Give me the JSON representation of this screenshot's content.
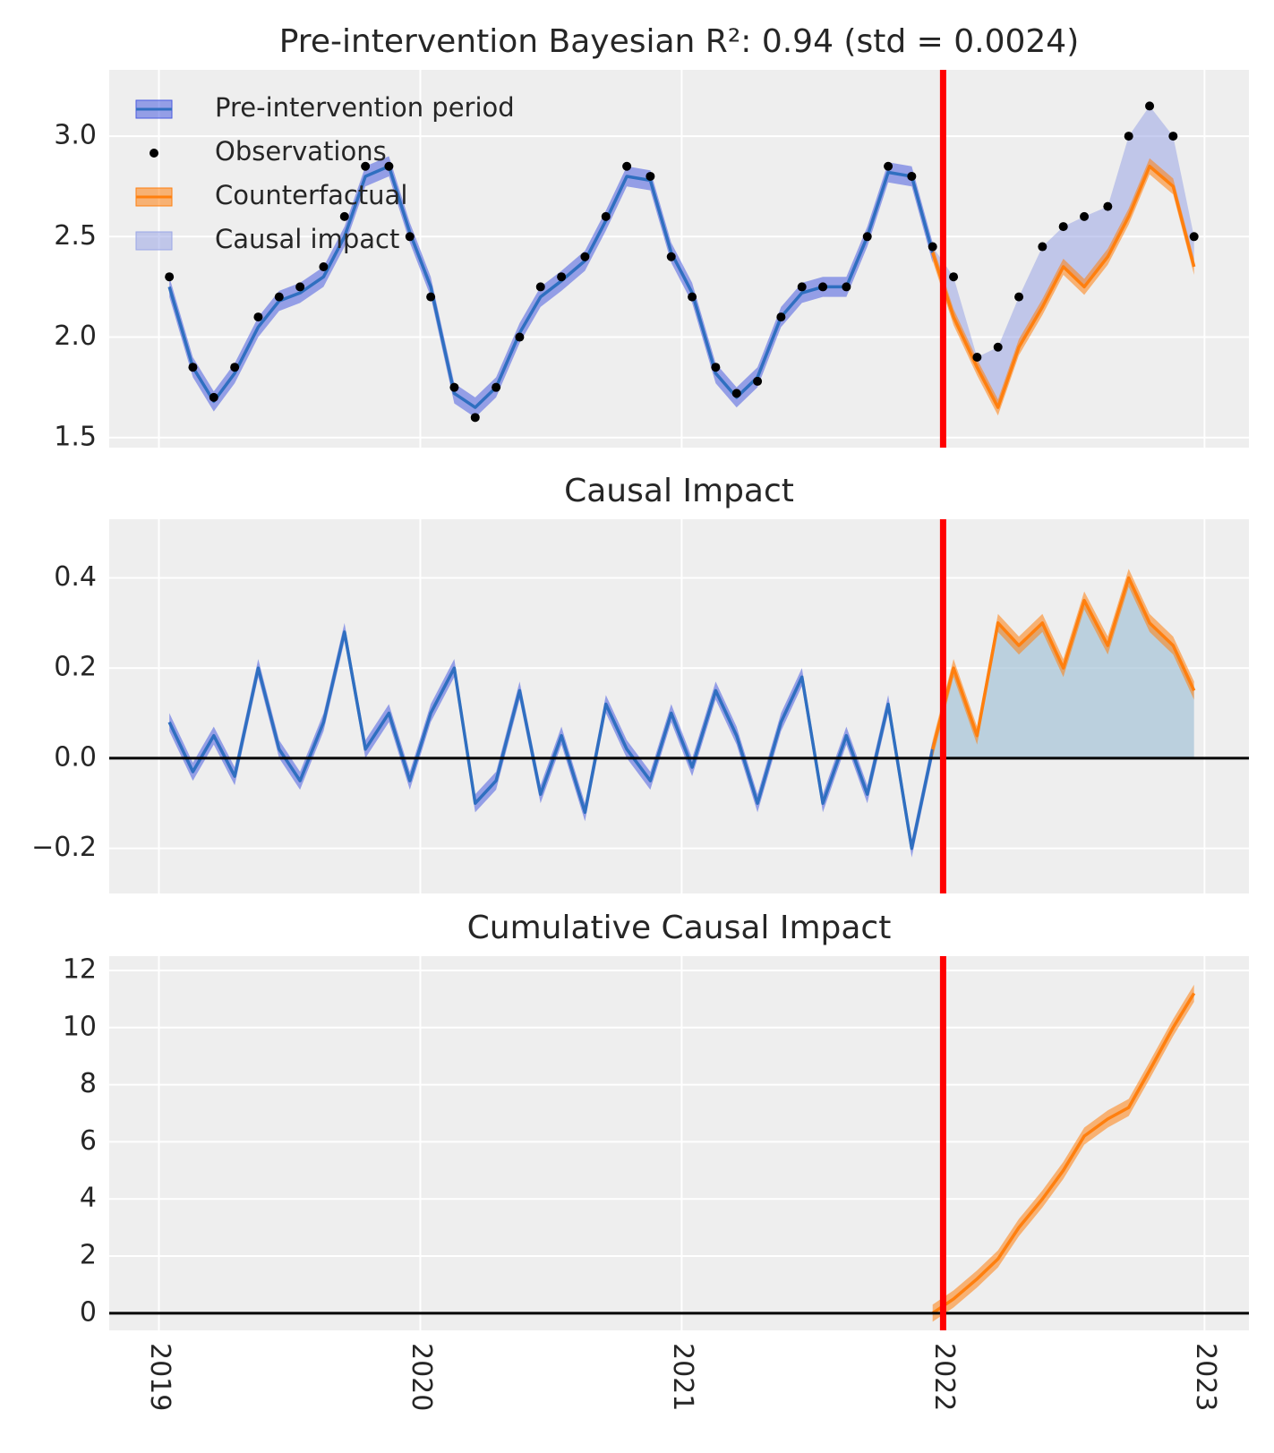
{
  "chart_data": [
    {
      "type": "line",
      "title": "Pre-intervention Bayesian R²: 0.94 (std = 0.0024)",
      "x": [
        2019.04,
        2019.13,
        2019.21,
        2019.29,
        2019.38,
        2019.46,
        2019.54,
        2019.63,
        2019.71,
        2019.79,
        2019.88,
        2019.96,
        2020.04,
        2020.13,
        2020.21,
        2020.29,
        2020.38,
        2020.46,
        2020.54,
        2020.63,
        2020.71,
        2020.79,
        2020.88,
        2020.96,
        2021.04,
        2021.13,
        2021.21,
        2021.29,
        2021.38,
        2021.46,
        2021.54,
        2021.63,
        2021.71,
        2021.79,
        2021.88,
        2021.96,
        2022.04,
        2022.13,
        2022.21,
        2022.29,
        2022.38,
        2022.46,
        2022.54,
        2022.63,
        2022.71,
        2022.79,
        2022.88,
        2022.96
      ],
      "xlim": [
        2018.81,
        2023.17
      ],
      "xticks": [
        2019,
        2020,
        2021,
        2022,
        2023
      ],
      "show_xtick_labels": false,
      "ylim": [
        1.45,
        3.33
      ],
      "yticks": [
        1.5,
        {
          "value": 2,
          "label": "2.0"
        },
        2.5,
        {
          "value": 3,
          "label": "3.0"
        }
      ],
      "intervention": 2022,
      "grid": true,
      "legend": "upper left",
      "series": [
        {
          "name": "Pre-intervention period",
          "style": "line",
          "color": "#2f6fc0",
          "band_color": "#4a5ce0",
          "band": 0.05,
          "values": [
            2.25,
            1.85,
            1.68,
            1.82,
            2.05,
            2.18,
            2.22,
            2.3,
            2.5,
            2.8,
            2.85,
            2.52,
            2.25,
            1.72,
            1.65,
            1.75,
            2.02,
            2.2,
            2.28,
            2.38,
            2.58,
            2.8,
            2.78,
            2.42,
            2.22,
            1.82,
            1.7,
            1.8,
            2.1,
            2.22,
            2.25,
            2.25,
            2.5,
            2.82,
            2.8,
            2.42,
            null,
            null,
            null,
            null,
            null,
            null,
            null,
            null,
            null,
            null,
            null,
            null
          ]
        },
        {
          "name": "Observations",
          "style": "points",
          "color": "#000000",
          "values": [
            2.3,
            1.85,
            1.7,
            1.85,
            2.1,
            2.2,
            2.25,
            2.35,
            2.6,
            2.85,
            2.85,
            2.5,
            2.2,
            1.75,
            1.6,
            1.75,
            2.0,
            2.25,
            2.3,
            2.4,
            2.6,
            2.85,
            2.8,
            2.4,
            2.2,
            1.85,
            1.72,
            1.78,
            2.1,
            2.25,
            2.25,
            2.25,
            2.5,
            2.85,
            2.8,
            2.45,
            2.3,
            1.9,
            1.95,
            2.2,
            2.45,
            2.55,
            2.6,
            2.65,
            3.0,
            3.15,
            3.0,
            2.5
          ]
        },
        {
          "name": "Counterfactual",
          "style": "line",
          "color": "#ff7f0e",
          "band_color": "#ff7f0e",
          "band": 0.04,
          "values": [
            null,
            null,
            null,
            null,
            null,
            null,
            null,
            null,
            null,
            null,
            null,
            null,
            null,
            null,
            null,
            null,
            null,
            null,
            null,
            null,
            null,
            null,
            null,
            null,
            null,
            null,
            null,
            null,
            null,
            null,
            null,
            null,
            null,
            null,
            null,
            2.42,
            2.1,
            1.85,
            1.65,
            1.95,
            2.15,
            2.35,
            2.25,
            2.4,
            2.6,
            2.85,
            2.75,
            2.35
          ]
        },
        {
          "name": "Causal impact",
          "style": "fill",
          "color": "#9aa6e6"
        }
      ]
    },
    {
      "type": "line",
      "title": "Causal Impact",
      "x": [
        2019.04,
        2019.13,
        2019.21,
        2019.29,
        2019.38,
        2019.46,
        2019.54,
        2019.63,
        2019.71,
        2019.79,
        2019.88,
        2019.96,
        2020.04,
        2020.13,
        2020.21,
        2020.29,
        2020.38,
        2020.46,
        2020.54,
        2020.63,
        2020.71,
        2020.79,
        2020.88,
        2020.96,
        2021.04,
        2021.13,
        2021.21,
        2021.29,
        2021.38,
        2021.46,
        2021.54,
        2021.63,
        2021.71,
        2021.79,
        2021.88,
        2021.96,
        2022.04,
        2022.13,
        2022.21,
        2022.29,
        2022.38,
        2022.46,
        2022.54,
        2022.63,
        2022.71,
        2022.79,
        2022.88,
        2022.96
      ],
      "xlim": [
        2018.81,
        2023.17
      ],
      "xticks": [
        2019,
        2020,
        2021,
        2022,
        2023
      ],
      "show_xtick_labels": false,
      "ylim": [
        -0.3,
        0.53
      ],
      "yticks": [
        {
          "value": -0.2,
          "label": "−0.2"
        },
        {
          "value": 0,
          "label": "0.0"
        },
        0.2,
        0.4
      ],
      "intervention": 2022,
      "zero_line": 0,
      "grid": true,
      "series": [
        {
          "style": "line",
          "color": "#2f6fc0",
          "band_color": "#4a5ce0",
          "band": 0.02,
          "values": [
            0.08,
            -0.03,
            0.05,
            -0.04,
            0.2,
            0.02,
            -0.05,
            0.08,
            0.28,
            0.02,
            0.1,
            -0.05,
            0.1,
            0.2,
            -0.1,
            -0.05,
            0.15,
            -0.08,
            0.05,
            -0.12,
            0.12,
            0.02,
            -0.05,
            0.1,
            -0.02,
            0.15,
            0.05,
            -0.1,
            0.08,
            0.18,
            -0.1,
            0.05,
            -0.08,
            0.12,
            -0.2,
            0.02,
            null,
            null,
            null,
            null,
            null,
            null,
            null,
            null,
            null,
            null,
            null,
            null
          ]
        },
        {
          "style": "line",
          "color": "#ff7f0e",
          "band_color": "#ff7f0e",
          "band": 0.02,
          "fill": "#9fc0d6",
          "values": [
            null,
            null,
            null,
            null,
            null,
            null,
            null,
            null,
            null,
            null,
            null,
            null,
            null,
            null,
            null,
            null,
            null,
            null,
            null,
            null,
            null,
            null,
            null,
            null,
            null,
            null,
            null,
            null,
            null,
            null,
            null,
            null,
            null,
            null,
            null,
            0.02,
            0.2,
            0.05,
            0.3,
            0.25,
            0.3,
            0.2,
            0.35,
            0.25,
            0.4,
            0.3,
            0.25,
            0.15
          ]
        }
      ]
    },
    {
      "type": "line",
      "title": "Cumulative Causal Impact",
      "x": [
        2019.04,
        2019.13,
        2019.21,
        2019.29,
        2019.38,
        2019.46,
        2019.54,
        2019.63,
        2019.71,
        2019.79,
        2019.88,
        2019.96,
        2020.04,
        2020.13,
        2020.21,
        2020.29,
        2020.38,
        2020.46,
        2020.54,
        2020.63,
        2020.71,
        2020.79,
        2020.88,
        2020.96,
        2021.04,
        2021.13,
        2021.21,
        2021.29,
        2021.38,
        2021.46,
        2021.54,
        2021.63,
        2021.71,
        2021.79,
        2021.88,
        2021.96,
        2022.04,
        2022.13,
        2022.21,
        2022.29,
        2022.38,
        2022.46,
        2022.54,
        2022.63,
        2022.71,
        2022.79,
        2022.88,
        2022.96
      ],
      "xlim": [
        2018.81,
        2023.17
      ],
      "xticks": [
        2019,
        2020,
        2021,
        2022,
        2023
      ],
      "show_xtick_labels": true,
      "ylim": [
        -0.6,
        12.5
      ],
      "yticks": [
        0,
        2,
        4,
        6,
        8,
        10,
        12
      ],
      "intervention": 2022,
      "zero_line": 0,
      "grid": true,
      "series": [
        {
          "style": "line",
          "color": "#ff7f0e",
          "band_color": "#ff7f0e",
          "band": 0.3,
          "values": [
            null,
            null,
            null,
            null,
            null,
            null,
            null,
            null,
            null,
            null,
            null,
            null,
            null,
            null,
            null,
            null,
            null,
            null,
            null,
            null,
            null,
            null,
            null,
            null,
            null,
            null,
            null,
            null,
            null,
            null,
            null,
            null,
            null,
            null,
            null,
            0,
            0.5,
            1.2,
            1.9,
            3.0,
            4.0,
            5.0,
            6.2,
            6.8,
            7.2,
            8.5,
            10.0,
            11.2
          ]
        }
      ]
    }
  ]
}
